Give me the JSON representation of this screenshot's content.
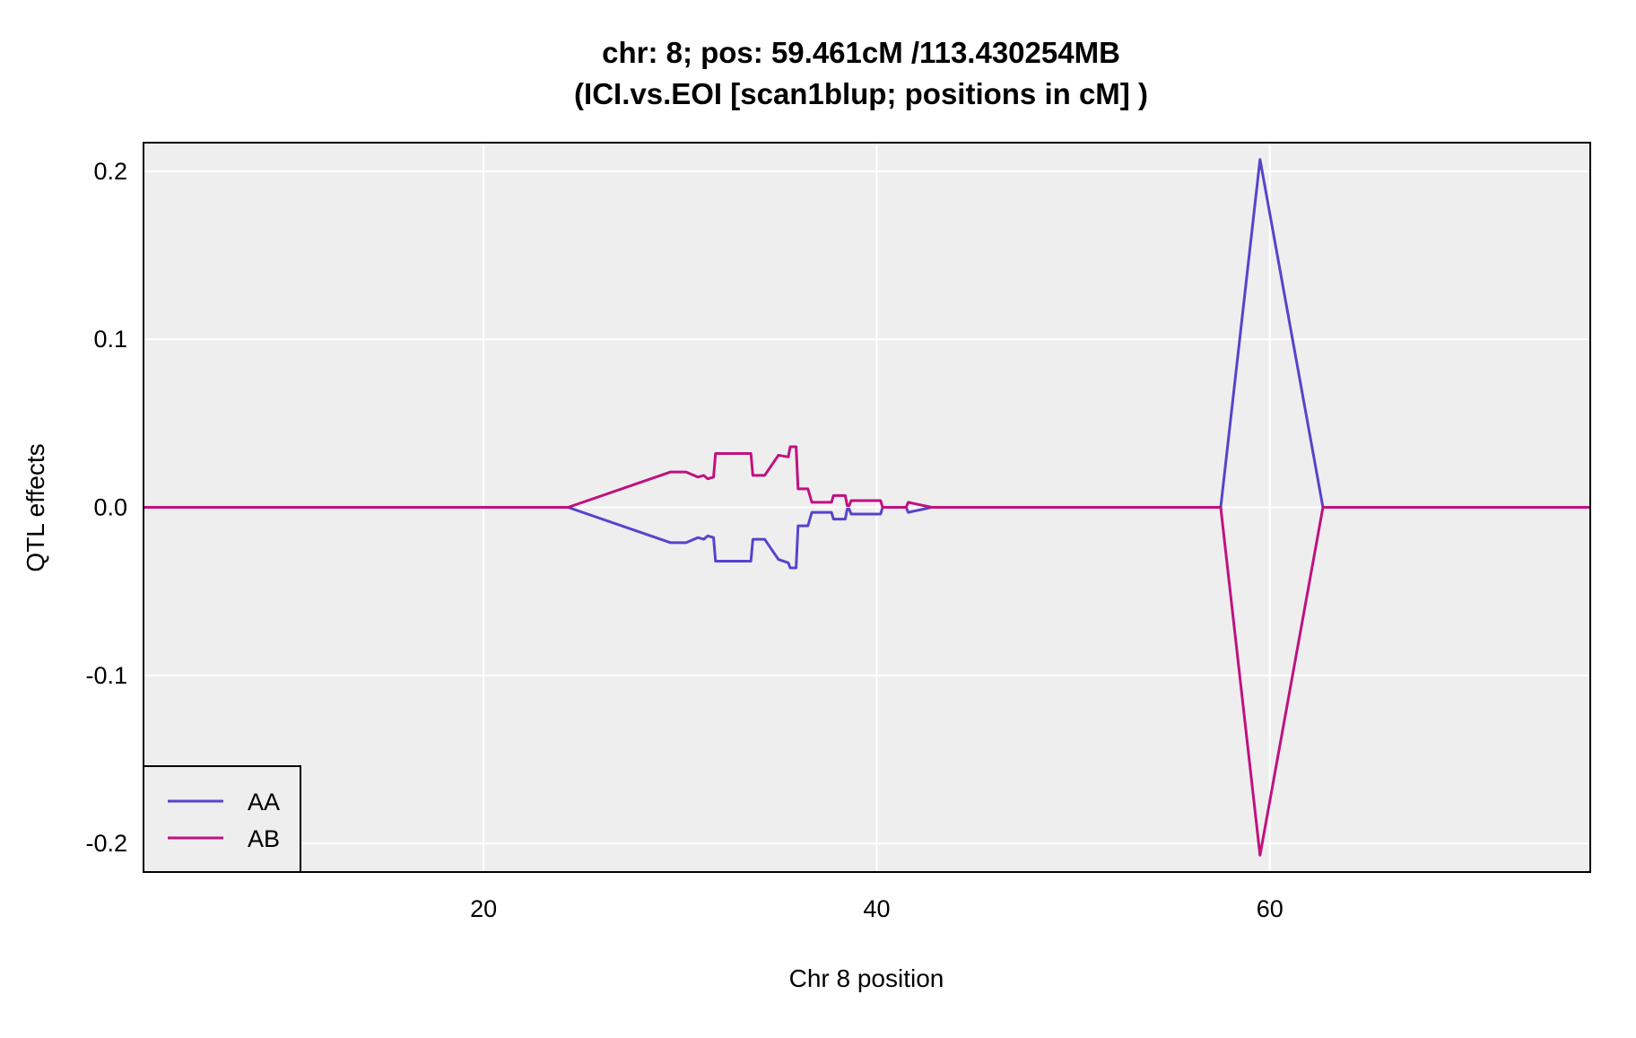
{
  "chart_data": {
    "type": "line",
    "title": "chr: 8; pos: 59.461cM /113.430254MB",
    "subtitle": "(ICI.vs.EOI [scan1blup; positions in cM] )",
    "xlabel": "Chr 8 position",
    "ylabel": "QTL effects",
    "xlim": [
      2.7,
      76.3
    ],
    "ylim": [
      -0.217,
      0.217
    ],
    "xticks": [
      20,
      40,
      60
    ],
    "yticks": [
      -0.2,
      -0.1,
      0.0,
      0.1,
      0.2
    ],
    "grid": true,
    "background": "#eeeeee",
    "legend_position": "bottom-left",
    "series": [
      {
        "name": "AA",
        "color": "#5544cc",
        "points": [
          [
            2.7,
            0
          ],
          [
            24.3,
            0
          ],
          [
            29.5,
            -0.021
          ],
          [
            30.3,
            -0.021
          ],
          [
            30.9,
            -0.018
          ],
          [
            31.2,
            -0.019
          ],
          [
            31.4,
            -0.017
          ],
          [
            31.7,
            -0.018
          ],
          [
            31.8,
            -0.032
          ],
          [
            33.6,
            -0.032
          ],
          [
            33.7,
            -0.019
          ],
          [
            34.3,
            -0.019
          ],
          [
            35.0,
            -0.031
          ],
          [
            35.5,
            -0.033
          ],
          [
            35.6,
            -0.036
          ],
          [
            35.9,
            -0.036
          ],
          [
            36.0,
            -0.011
          ],
          [
            36.5,
            -0.011
          ],
          [
            36.7,
            -0.003
          ],
          [
            37.7,
            -0.003
          ],
          [
            37.8,
            -0.007
          ],
          [
            38.4,
            -0.007
          ],
          [
            38.5,
            -0.001
          ],
          [
            38.6,
            -0.001
          ],
          [
            38.7,
            -0.004
          ],
          [
            40.2,
            -0.004
          ],
          [
            40.3,
            0
          ],
          [
            41.5,
            0
          ],
          [
            41.6,
            -0.003
          ],
          [
            42.8,
            0
          ],
          [
            57.5,
            0
          ],
          [
            59.5,
            0.207
          ],
          [
            62.7,
            0
          ],
          [
            76.3,
            0
          ]
        ]
      },
      {
        "name": "AB",
        "color": "#c0117f",
        "points": [
          [
            2.7,
            0
          ],
          [
            24.3,
            0
          ],
          [
            29.5,
            0.021
          ],
          [
            30.3,
            0.021
          ],
          [
            30.9,
            0.018
          ],
          [
            31.2,
            0.019
          ],
          [
            31.4,
            0.017
          ],
          [
            31.7,
            0.018
          ],
          [
            31.8,
            0.032
          ],
          [
            33.6,
            0.032
          ],
          [
            33.7,
            0.019
          ],
          [
            34.3,
            0.019
          ],
          [
            35.0,
            0.031
          ],
          [
            35.5,
            0.03
          ],
          [
            35.6,
            0.036
          ],
          [
            35.9,
            0.036
          ],
          [
            36.0,
            0.011
          ],
          [
            36.5,
            0.011
          ],
          [
            36.7,
            0.003
          ],
          [
            37.7,
            0.003
          ],
          [
            37.8,
            0.007
          ],
          [
            38.4,
            0.007
          ],
          [
            38.5,
            0.001
          ],
          [
            38.6,
            0.001
          ],
          [
            38.7,
            0.004
          ],
          [
            40.2,
            0.004
          ],
          [
            40.3,
            0
          ],
          [
            41.5,
            0
          ],
          [
            41.6,
            0.003
          ],
          [
            42.8,
            0
          ],
          [
            57.5,
            0
          ],
          [
            59.5,
            -0.207
          ],
          [
            62.7,
            0
          ],
          [
            76.3,
            0
          ]
        ]
      }
    ]
  }
}
